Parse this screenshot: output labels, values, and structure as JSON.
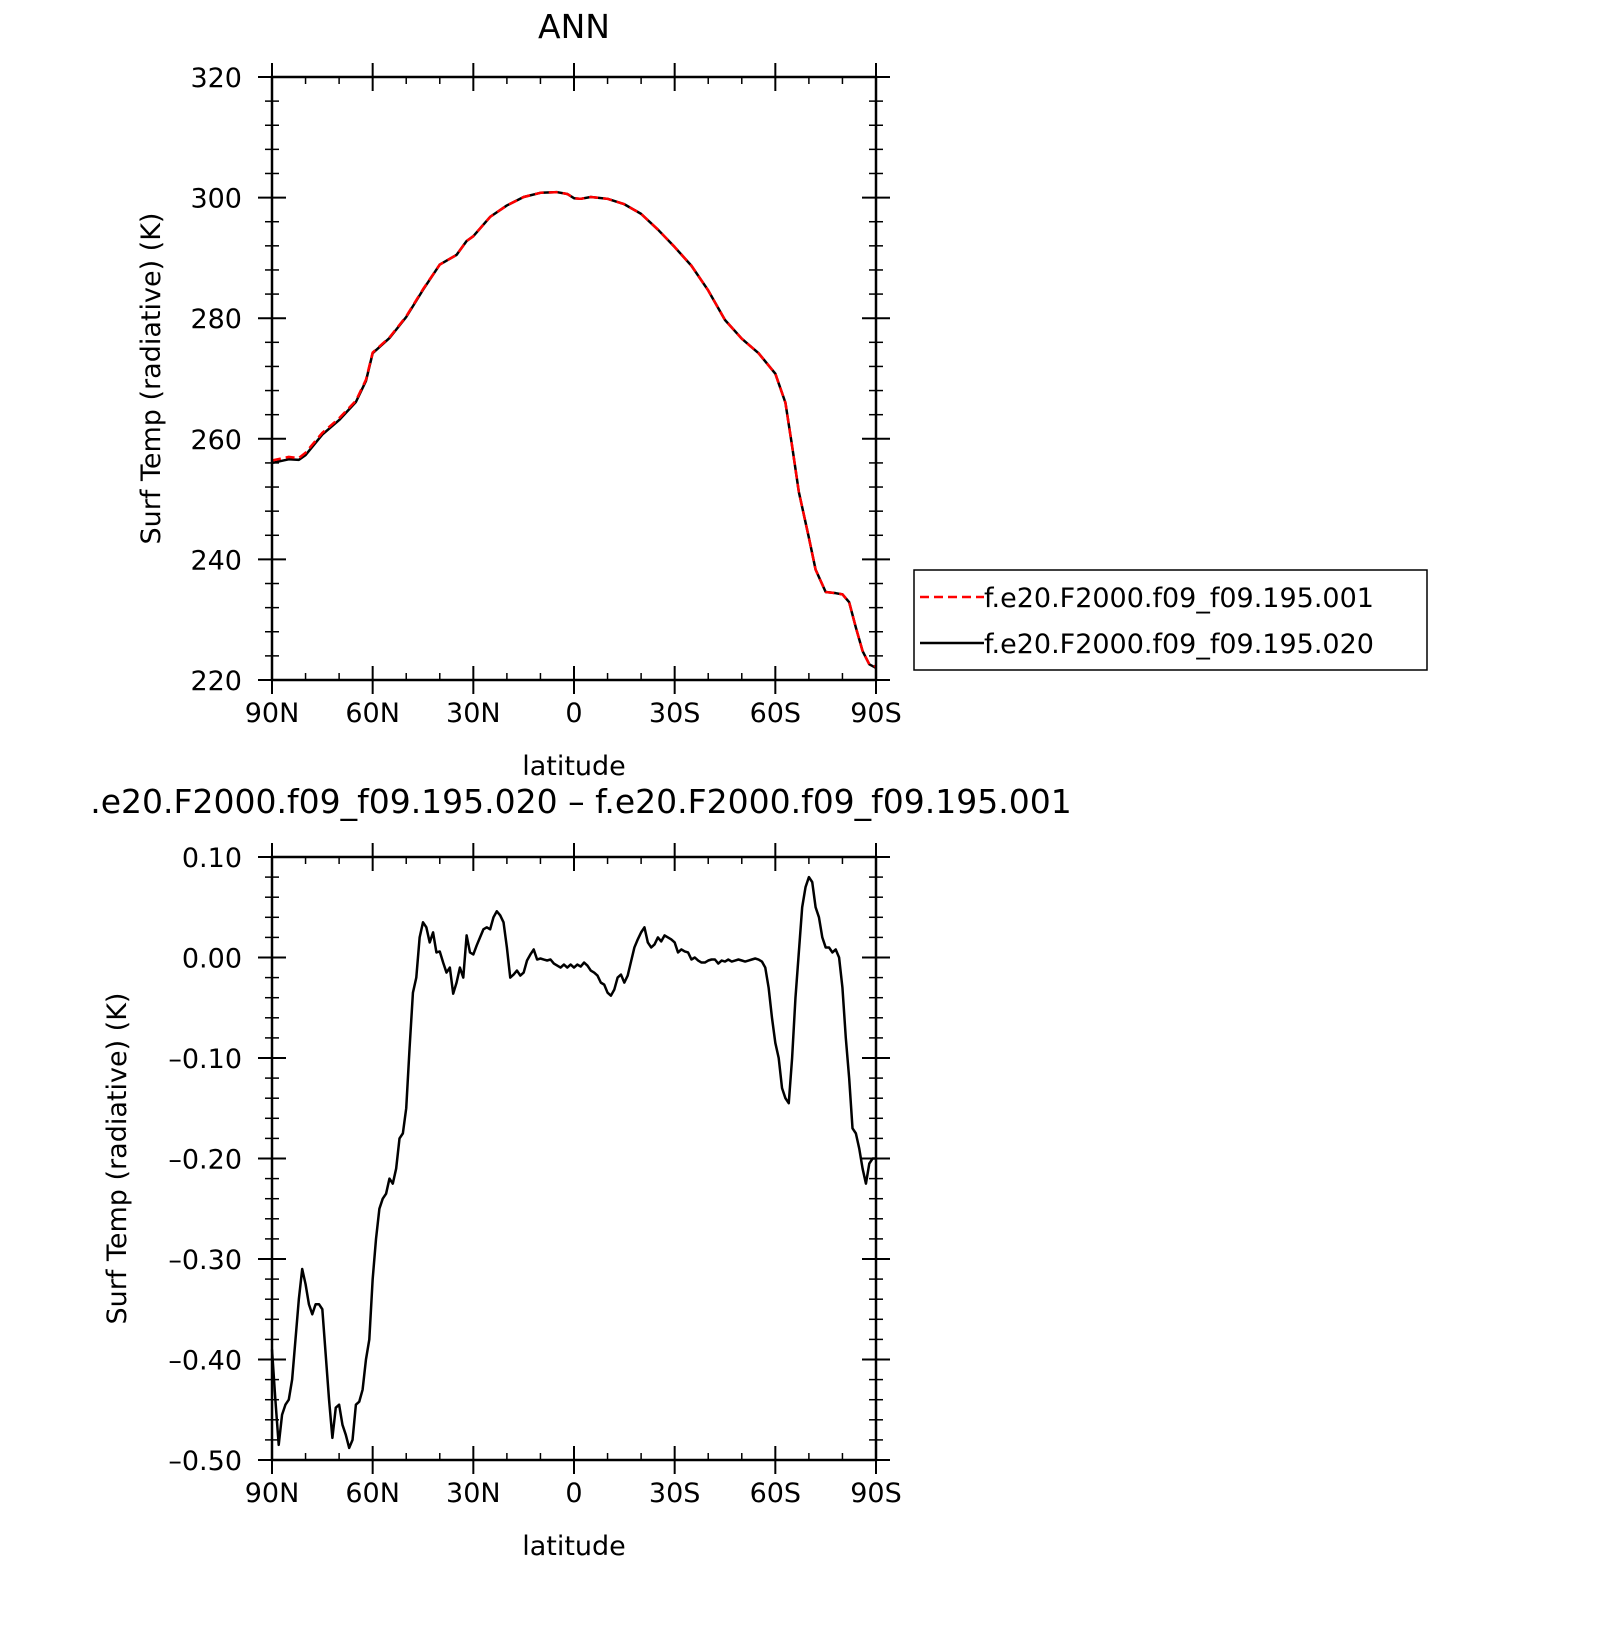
{
  "chart_data": [
    {
      "type": "line",
      "title": "ANN",
      "xlabel": "latitude",
      "ylabel": "Surf Temp (radiative) (K)",
      "xlim": [
        90,
        -90
      ],
      "ylim": [
        220,
        320
      ],
      "grid": false,
      "x_ticks": [
        {
          "value": 90,
          "label": "90N"
        },
        {
          "value": 60,
          "label": "60N"
        },
        {
          "value": 30,
          "label": "30N"
        },
        {
          "value": 0,
          "label": "0"
        },
        {
          "value": -30,
          "label": "30S"
        },
        {
          "value": -60,
          "label": "60S"
        },
        {
          "value": -90,
          "label": "90S"
        }
      ],
      "y_ticks": [
        {
          "value": 220,
          "label": "220"
        },
        {
          "value": 240,
          "label": "240"
        },
        {
          "value": 260,
          "label": "260"
        },
        {
          "value": 280,
          "label": "280"
        },
        {
          "value": 300,
          "label": "300"
        },
        {
          "value": 320,
          "label": "320"
        }
      ],
      "legend_position": "right",
      "series": [
        {
          "name": "f.e20.F2000.f09_f09.195.001",
          "color": "#ff0000",
          "style": "dashed",
          "x": [
            90,
            85,
            82,
            80,
            75,
            70,
            65,
            62,
            60,
            55,
            50,
            45,
            40,
            35,
            32,
            30,
            25,
            20,
            15,
            10,
            5,
            2,
            0,
            -2,
            -5,
            -10,
            -15,
            -20,
            -25,
            -30,
            -35,
            -40,
            -45,
            -50,
            -55,
            -60,
            -63,
            -65,
            -67,
            -70,
            -72,
            -75,
            -78,
            -80,
            -82,
            -84,
            -86,
            -88,
            -90
          ],
          "values": [
            256.4,
            257.0,
            256.8,
            257.7,
            261.0,
            263.4,
            266.3,
            269.8,
            274.3,
            276.8,
            280.3,
            284.8,
            288.9,
            290.5,
            292.8,
            293.6,
            296.8,
            298.7,
            300.1,
            300.8,
            300.9,
            300.6,
            299.9,
            299.8,
            300.1,
            299.8,
            298.9,
            297.3,
            294.7,
            291.8,
            288.7,
            284.6,
            279.7,
            276.6,
            274.2,
            270.8,
            266.0,
            258.8,
            251.2,
            243.6,
            238.3,
            234.6,
            234.4,
            234.2,
            232.9,
            228.7,
            224.8,
            222.6,
            222.2
          ]
        },
        {
          "name": "f.e20.F2000.f09_f09.195.020",
          "color": "#000000",
          "style": "solid",
          "x": [
            90,
            85,
            82,
            80,
            75,
            70,
            65,
            62,
            60,
            55,
            50,
            45,
            40,
            35,
            32,
            30,
            25,
            20,
            15,
            10,
            5,
            2,
            0,
            -2,
            -5,
            -10,
            -15,
            -20,
            -25,
            -30,
            -35,
            -40,
            -45,
            -50,
            -55,
            -60,
            -63,
            -65,
            -67,
            -70,
            -72,
            -75,
            -78,
            -80,
            -82,
            -84,
            -86,
            -88,
            -90
          ],
          "values": [
            256.0,
            256.6,
            256.5,
            257.3,
            260.7,
            263.1,
            266.1,
            269.6,
            274.2,
            276.7,
            280.2,
            284.7,
            288.9,
            290.5,
            292.8,
            293.6,
            296.8,
            298.7,
            300.1,
            300.8,
            300.9,
            300.6,
            299.9,
            299.8,
            300.1,
            299.8,
            298.9,
            297.3,
            294.7,
            291.8,
            288.7,
            284.6,
            279.7,
            276.6,
            274.2,
            270.8,
            266.0,
            258.8,
            251.2,
            243.6,
            238.3,
            234.6,
            234.4,
            234.2,
            232.9,
            228.7,
            224.8,
            222.6,
            222.0
          ]
        }
      ]
    },
    {
      "type": "line",
      "title": ".e20.F2000.f09_f09.195.020 – f.e20.F2000.f09_f09.195.001",
      "xlabel": "latitude",
      "ylabel": "Surf Temp (radiative) (K)",
      "xlim": [
        90,
        -90
      ],
      "ylim": [
        -0.5,
        0.1
      ],
      "grid": false,
      "x_ticks": [
        {
          "value": 90,
          "label": "90N"
        },
        {
          "value": 60,
          "label": "60N"
        },
        {
          "value": 30,
          "label": "30N"
        },
        {
          "value": 0,
          "label": "0"
        },
        {
          "value": -30,
          "label": "30S"
        },
        {
          "value": -60,
          "label": "60S"
        },
        {
          "value": -90,
          "label": "90S"
        }
      ],
      "y_ticks": [
        {
          "value": -0.5,
          "label": "–0.50"
        },
        {
          "value": -0.4,
          "label": "–0.40"
        },
        {
          "value": -0.3,
          "label": "–0.30"
        },
        {
          "value": -0.2,
          "label": "–0.20"
        },
        {
          "value": -0.1,
          "label": "–0.10"
        },
        {
          "value": 0.0,
          "label": "0.00"
        },
        {
          "value": 0.1,
          "label": "0.10"
        }
      ],
      "series": [
        {
          "color": "#000000",
          "style": "solid",
          "x": [
            90,
            89,
            88,
            87,
            86,
            85,
            84,
            83,
            82,
            81,
            80,
            79,
            78,
            77,
            76,
            75,
            74,
            73,
            72,
            71,
            70,
            69,
            68,
            67,
            66,
            65,
            64,
            63,
            62,
            61,
            60,
            59,
            58,
            57,
            56,
            55,
            54,
            53,
            52,
            51,
            50,
            49,
            48,
            47,
            46,
            45,
            44,
            43,
            42,
            41,
            40,
            39,
            38,
            37,
            36,
            35,
            34,
            33,
            32,
            31,
            30,
            29,
            28,
            27,
            26,
            25,
            24,
            23,
            22,
            21,
            20,
            19,
            18,
            17,
            16,
            15,
            14,
            13,
            12,
            11,
            10,
            9,
            8,
            7,
            6,
            5,
            4,
            3,
            2,
            1,
            0,
            -1,
            -2,
            -3,
            -4,
            -5,
            -6,
            -7,
            -8,
            -9,
            -10,
            -11,
            -12,
            -13,
            -14,
            -15,
            -16,
            -17,
            -18,
            -19,
            -20,
            -21,
            -22,
            -23,
            -24,
            -25,
            -26,
            -27,
            -28,
            -29,
            -30,
            -31,
            -32,
            -33,
            -34,
            -35,
            -36,
            -37,
            -38,
            -39,
            -40,
            -41,
            -42,
            -43,
            -44,
            -45,
            -46,
            -47,
            -48,
            -49,
            -50,
            -51,
            -52,
            -53,
            -54,
            -55,
            -56,
            -57,
            -58,
            -59,
            -60,
            -61,
            -62,
            -63,
            -64,
            -65,
            -66,
            -67,
            -68,
            -69,
            -70,
            -71,
            -72,
            -73,
            -74,
            -75,
            -76,
            -77,
            -78,
            -79,
            -80,
            -81,
            -82,
            -83,
            -84,
            -85,
            -86,
            -87,
            -88,
            -89,
            -90
          ],
          "values": [
            -0.39,
            -0.44,
            -0.485,
            -0.455,
            -0.445,
            -0.44,
            -0.42,
            -0.38,
            -0.34,
            -0.31,
            -0.325,
            -0.345,
            -0.355,
            -0.345,
            -0.345,
            -0.35,
            -0.395,
            -0.44,
            -0.478,
            -0.448,
            -0.445,
            -0.465,
            -0.475,
            -0.488,
            -0.48,
            -0.445,
            -0.442,
            -0.43,
            -0.4,
            -0.38,
            -0.32,
            -0.28,
            -0.25,
            -0.24,
            -0.235,
            -0.22,
            -0.225,
            -0.21,
            -0.18,
            -0.175,
            -0.15,
            -0.09,
            -0.035,
            -0.02,
            0.02,
            0.035,
            0.03,
            0.015,
            0.025,
            0.005,
            0.006,
            -0.005,
            -0.015,
            -0.01,
            -0.036,
            -0.025,
            -0.01,
            -0.02,
            0.022,
            0.005,
            0.003,
            0.012,
            0.02,
            0.028,
            0.03,
            0.028,
            0.04,
            0.046,
            0.042,
            0.035,
            0.01,
            -0.02,
            -0.017,
            -0.013,
            -0.018,
            -0.015,
            -0.003,
            0.003,
            0.008,
            -0.002,
            -0.001,
            -0.002,
            -0.003,
            -0.002,
            -0.006,
            -0.008,
            -0.01,
            -0.007,
            -0.01,
            -0.007,
            -0.01,
            -0.007,
            -0.009,
            -0.005,
            -0.008,
            -0.013,
            -0.015,
            -0.018,
            -0.025,
            -0.027,
            -0.035,
            -0.038,
            -0.032,
            -0.02,
            -0.017,
            -0.025,
            -0.018,
            -0.004,
            0.01,
            0.018,
            0.025,
            0.03,
            0.015,
            0.01,
            0.013,
            0.02,
            0.016,
            0.022,
            0.02,
            0.018,
            0.015,
            0.005,
            0.008,
            0.006,
            0.005,
            -0.002,
            0.0,
            -0.003,
            -0.005,
            -0.005,
            -0.003,
            -0.002,
            -0.002,
            -0.006,
            -0.003,
            -0.004,
            -0.002,
            -0.004,
            -0.003,
            -0.002,
            -0.003,
            -0.004,
            -0.003,
            -0.002,
            -0.001,
            -0.002,
            -0.004,
            -0.01,
            -0.03,
            -0.06,
            -0.085,
            -0.1,
            -0.13,
            -0.14,
            -0.145,
            -0.1,
            -0.04,
            0.005,
            0.05,
            0.07,
            0.08,
            0.075,
            0.05,
            0.04,
            0.02,
            0.01,
            0.01,
            0.005,
            0.008,
            0.0,
            -0.03,
            -0.08,
            -0.12,
            -0.17,
            -0.175,
            -0.19,
            -0.21,
            -0.225,
            -0.205,
            -0.2,
            -0.2
          ]
        }
      ]
    }
  ]
}
